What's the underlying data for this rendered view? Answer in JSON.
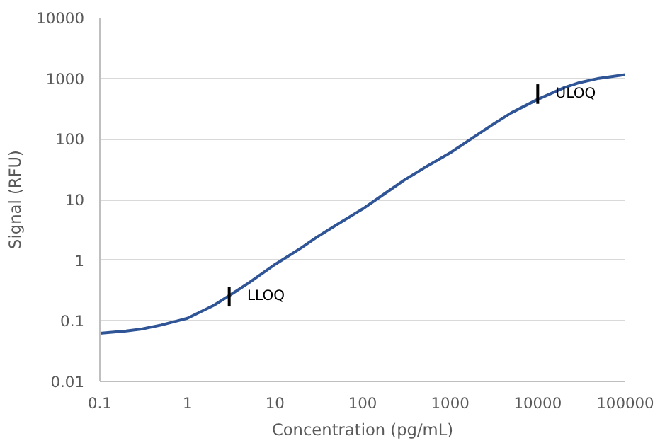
{
  "chart_data": {
    "type": "line",
    "xlabel": "Concentration (pg/mL)",
    "ylabel": "Signal (RFU)",
    "log": "xy",
    "grid": "y",
    "marker": "none",
    "line_style": "solid",
    "xlim": [
      0.1,
      100000
    ],
    "xticks": [
      0.1,
      1,
      10,
      100,
      1000,
      10000,
      100000
    ],
    "ylim": [
      0.01,
      10000
    ],
    "yticks": [
      0.01,
      0.1,
      1,
      10,
      100,
      1000,
      10000
    ],
    "x": [
      0.1,
      0.2,
      0.3,
      0.5,
      1,
      2,
      3,
      5,
      10,
      20,
      30,
      50,
      100,
      200,
      300,
      500,
      1000,
      2000,
      3000,
      5000,
      10000,
      20000,
      30000,
      50000,
      100000
    ],
    "series": [
      {
        "color": "#2f5597",
        "values": [
          0.062,
          0.068,
          0.073,
          0.085,
          0.11,
          0.18,
          0.26,
          0.42,
          0.85,
          1.6,
          2.4,
          3.8,
          7,
          14,
          21,
          33,
          59,
          115,
          170,
          270,
          450,
          700,
          850,
          1000,
          1150
        ]
      }
    ],
    "annotations": [
      {
        "text": "LLOQ",
        "x": 3,
        "y": 0.25
      },
      {
        "text": "ULOQ",
        "x": 10000,
        "y": 550
      }
    ]
  }
}
